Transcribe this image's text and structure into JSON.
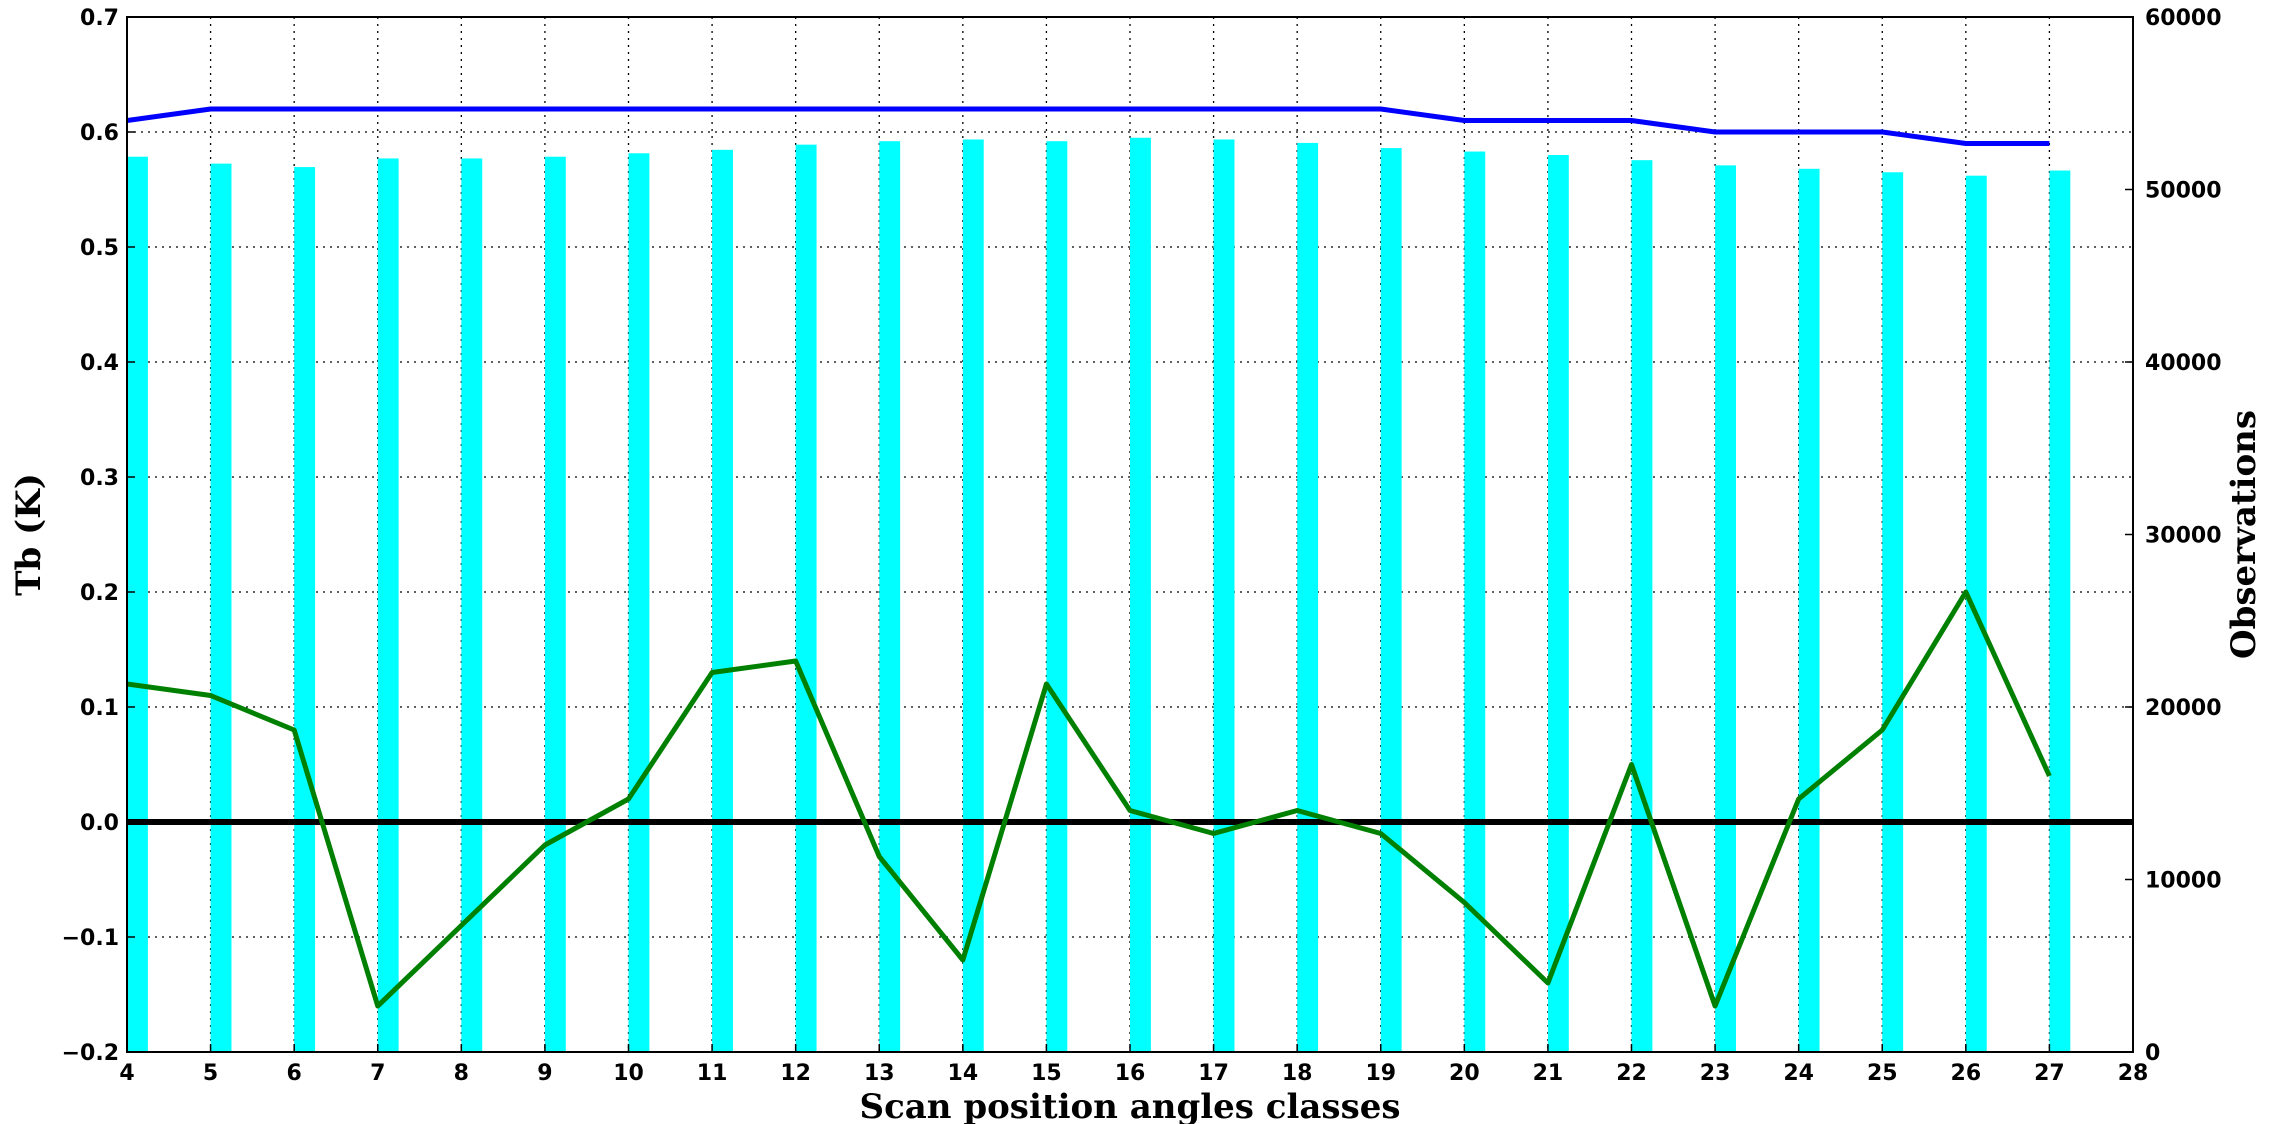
{
  "chart_data": {
    "type": "bar+line",
    "xlabel": "Scan position angles classes",
    "ylabel_left": "Tb (K)",
    "ylabel_right": "Observations",
    "xlim": [
      4,
      28
    ],
    "xticks": [
      4,
      5,
      6,
      7,
      8,
      9,
      10,
      11,
      12,
      13,
      14,
      15,
      16,
      17,
      18,
      19,
      20,
      21,
      22,
      23,
      24,
      25,
      26,
      27,
      28
    ],
    "ylim_left": [
      -0.2,
      0.7
    ],
    "yticks_left": [
      "−0.2",
      "−0.1",
      "0.0",
      "0.1",
      "0.2",
      "0.3",
      "0.4",
      "0.5",
      "0.6",
      "0.7"
    ],
    "ylim_right": [
      0,
      60000
    ],
    "yticks_right": [
      "0",
      "10000",
      "20000",
      "30000",
      "40000",
      "50000",
      "60000"
    ],
    "grid": true,
    "x": [
      4,
      5,
      6,
      7,
      8,
      9,
      10,
      11,
      12,
      13,
      14,
      15,
      16,
      17,
      18,
      19,
      20,
      21,
      22,
      23,
      24,
      25,
      26,
      27
    ],
    "series": [
      {
        "kind": "bar",
        "axis": "right",
        "color": "#00ffff",
        "values": [
          51900,
          51500,
          51300,
          51800,
          51800,
          51900,
          52100,
          52300,
          52600,
          52800,
          52900,
          52800,
          53000,
          52900,
          52700,
          52400,
          52200,
          52000,
          51700,
          51400,
          51200,
          51000,
          50800,
          51100
        ]
      },
      {
        "kind": "line",
        "axis": "left",
        "color": "#0000ff",
        "values": [
          0.61,
          0.62,
          0.62,
          0.62,
          0.62,
          0.62,
          0.62,
          0.62,
          0.62,
          0.62,
          0.62,
          0.62,
          0.62,
          0.62,
          0.62,
          0.62,
          0.61,
          0.61,
          0.61,
          0.6,
          0.6,
          0.6,
          0.59,
          0.59
        ]
      },
      {
        "kind": "line",
        "axis": "left",
        "color": "#008000",
        "values": [
          0.12,
          0.11,
          0.08,
          -0.16,
          -0.09,
          -0.02,
          0.02,
          0.13,
          0.14,
          -0.03,
          -0.12,
          0.12,
          0.01,
          -0.01,
          0.01,
          -0.01,
          -0.07,
          -0.14,
          0.05,
          -0.16,
          0.02,
          0.08,
          0.2,
          0.04
        ]
      }
    ],
    "zero_line": {
      "value": 0.0,
      "color": "#000000"
    }
  }
}
